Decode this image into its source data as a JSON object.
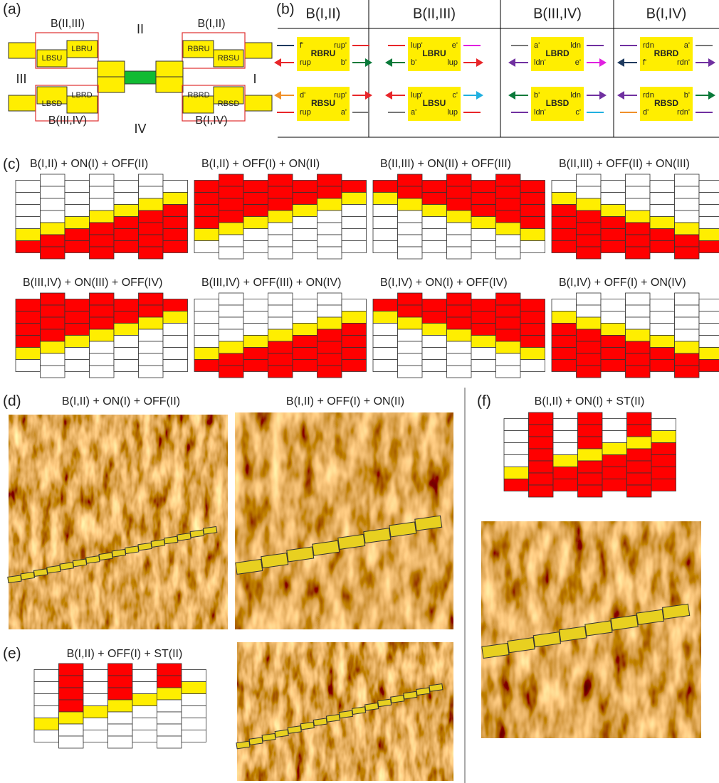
{
  "labels": {
    "a": "(a)",
    "b": "(b)",
    "c": "(c)",
    "d": "(d)",
    "e": "(e)",
    "f": "(f)"
  },
  "panel_a": {
    "boundaries": [
      "B(II,III)",
      "B(I,II)",
      "B(III,IV)",
      "B(I,IV)"
    ],
    "regions": [
      "II",
      "III",
      "I",
      "IV"
    ],
    "blocks": [
      "LBSU",
      "LBRU",
      "RBRU",
      "RBSU",
      "LBSD",
      "LBRD",
      "RBRD",
      "RBSD"
    ]
  },
  "panel_b": {
    "columns": [
      {
        "header": "B(I,II)",
        "blocks": [
          {
            "name": "RBRU",
            "ports": [
              "f'",
              "rup'",
              "rup",
              "b'"
            ]
          },
          {
            "name": "RBSU",
            "ports": [
              "d'",
              "rup'",
              "rup",
              "a'"
            ]
          }
        ]
      },
      {
        "header": "B(II,III)",
        "blocks": [
          {
            "name": "LBRU",
            "ports": [
              "lup'",
              "e'",
              "b'",
              "lup"
            ]
          },
          {
            "name": "LBSU",
            "ports": [
              "lup'",
              "c'",
              "a'",
              "lup"
            ]
          }
        ]
      },
      {
        "header": "B(III,IV)",
        "blocks": [
          {
            "name": "LBRD",
            "ports": [
              "a'",
              "ldn",
              "ldn'",
              "e'"
            ]
          },
          {
            "name": "LBSD",
            "ports": [
              "b'",
              "ldn",
              "ldn'",
              "c'"
            ]
          }
        ]
      },
      {
        "header": "B(I,IV)",
        "blocks": [
          {
            "name": "RBRD",
            "ports": [
              "rdn",
              "a'",
              "f'",
              "rdn'"
            ]
          },
          {
            "name": "RBSD",
            "ports": [
              "rdn",
              "b'",
              "d'",
              "rdn'"
            ]
          }
        ]
      }
    ]
  },
  "panel_c": {
    "titles": [
      "B(I,II) + ON(I) + OFF(II)",
      "B(I,II) + OFF(I) + ON(II)",
      "B(II,III) + ON(II) + OFF(III)",
      "B(II,III) + OFF(II) + ON(III)",
      "B(III,IV) + ON(III) + OFF(IV)",
      "B(III,IV) + OFF(III) + ON(IV)",
      "B(I,IV) + ON(I) + OFF(IV)",
      "B(I,IV) + OFF(I) + ON(IV)"
    ]
  },
  "panel_d": {
    "titles": [
      "B(I,II) + ON(I) + OFF(II)",
      "B(I,II) + OFF(I) + ON(II)"
    ]
  },
  "panel_e": {
    "title": "B(I,II) + OFF(I) + ST(II)"
  },
  "panel_f": {
    "title": "B(I,II) + ON(I) + ST(II)"
  }
}
